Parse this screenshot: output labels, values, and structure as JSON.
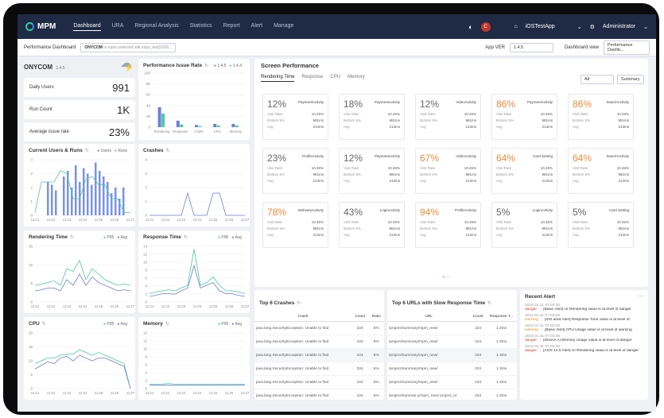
{
  "nav": {
    "brand": "MPM",
    "items": [
      "Dashboard",
      "URA",
      "Regional Analysis",
      "Statistics",
      "Report",
      "Alert",
      "Manage"
    ],
    "app": "iOSTestApp",
    "user": "Administrator",
    "avatar": "C"
  },
  "bar2": {
    "title": "Performance Dashboard",
    "tag": "ONYCOM",
    "tag_sub": "io.mpm.oneknnd.sdk.mtps_test(2200...",
    "appver_label": "App VER",
    "appver": "1.4.5",
    "dashview_label": "Dashboard view",
    "dashview": "Performance Dashb..."
  },
  "app": {
    "name": "ONYCOM",
    "ver": "1.4.5"
  },
  "kpis": [
    {
      "label": "Daily Users",
      "value": "991"
    },
    {
      "label": "Run Count",
      "value": "1K"
    },
    {
      "label": "Average issue rate",
      "value": "23%"
    }
  ],
  "perf_issue": {
    "title": "Performance Issue Rate",
    "legend": [
      "1.4.5",
      "1.4.4"
    ],
    "yticks": [
      "100",
      "80",
      "60",
      "40",
      "20",
      "0"
    ],
    "cats": [
      "Rendering",
      "Response",
      "Crash",
      "CPU",
      "Memory"
    ],
    "series": [
      [
        37,
        12,
        4,
        6,
        6
      ],
      [
        25,
        5,
        2,
        3,
        3
      ]
    ]
  },
  "cur_users": {
    "title": "Current Users & Runs",
    "legend": [
      "Users",
      "Runs"
    ],
    "yticks": [
      "4",
      "3",
      "2",
      "1",
      "0"
    ],
    "xticks": [
      "11:21",
      "11:22",
      "11:23",
      "11:24",
      "11:25",
      "11:26",
      "11:27"
    ]
  },
  "crashes": {
    "title": "Crashes",
    "yticks": [
      "4",
      "3",
      "2",
      "1",
      "0"
    ],
    "xticks": [
      "11:21",
      "11:22",
      "11:23",
      "11:24",
      "11:25",
      "11:26",
      "11:27"
    ]
  },
  "rendering": {
    "title": "Rendering Time",
    "legend": [
      "P95",
      "Avg"
    ],
    "yticks": [
      "15",
      "10",
      "5",
      "0"
    ],
    "xticks": [
      "11:21",
      "11:22",
      "11:23",
      "11:24",
      "11:25",
      "11:26",
      "11:27"
    ]
  },
  "response": {
    "title": "Response Time",
    "legend": [
      "P95",
      "Avg"
    ],
    "yticks": [
      "14",
      "12",
      "10",
      "8",
      "6",
      "4",
      "2",
      "0"
    ],
    "xticks": [
      "11:21",
      "11:22",
      "11:23",
      "11:24",
      "11:25",
      "11:26",
      "11:27"
    ]
  },
  "cpu": {
    "title": "CPU",
    "legend": [
      "P95",
      "Avg"
    ],
    "yticks": [
      "20",
      "15",
      "10",
      "5",
      "0"
    ],
    "xticks": [
      "11:21",
      "11:22",
      "11:23",
      "11:24",
      "11:25",
      "11:26",
      "11:27"
    ]
  },
  "memory": {
    "title": "Memory",
    "legend": [
      "P95",
      "Avg"
    ],
    "yticks": [
      "14",
      "12",
      "10",
      "8",
      "6",
      "4",
      "2",
      "0"
    ],
    "xticks": [
      "11:21",
      "11:22",
      "11:23",
      "11:24",
      "11:25",
      "11:26",
      "11:27"
    ]
  },
  "screen": {
    "title": "Screen Performance",
    "tabs": [
      "Rendering Time",
      "Response",
      "CPU",
      "Memory"
    ],
    "filter": "All",
    "summary": "Summary",
    "labels": {
      "visit": "Visit Rate",
      "bottom": "Bottom 5%",
      "avg": "Avg"
    },
    "cells": [
      {
        "p": "12%",
        "n": "PaymentActivity",
        "o": false
      },
      {
        "p": "18%",
        "n": "PaymentActivity",
        "o": false
      },
      {
        "p": "12%",
        "n": "VideoActivity",
        "o": false
      },
      {
        "p": "86%",
        "n": "PaymentActivity",
        "o": true
      },
      {
        "p": "86%",
        "n": "SearchActivity",
        "o": true
      },
      {
        "p": "23%",
        "n": "ProfileActivity",
        "o": false
      },
      {
        "p": "12%",
        "n": "PaymentActivity",
        "o": false
      },
      {
        "p": "67%",
        "n": "VideoActivity",
        "o": true
      },
      {
        "p": "64%",
        "n": "Card Setting",
        "o": true
      },
      {
        "p": "64%",
        "n": "SearchActivity",
        "o": true
      },
      {
        "p": "78%",
        "n": "WebviewActivity",
        "o": true
      },
      {
        "p": "43%",
        "n": "LoginActivity",
        "o": false
      },
      {
        "p": "94%",
        "n": "ProfileActivity",
        "o": true
      },
      {
        "p": "5%",
        "n": "LoginActivity",
        "o": false
      },
      {
        "p": "5%",
        "n": "Card Setting",
        "o": false
      }
    ],
    "vals": {
      "visit": "10.45%",
      "bottom": "981ms",
      "avg": "213ms"
    }
  },
  "crash6": {
    "title": "Top 6 Crashes",
    "cols": [
      "Crash",
      "Count",
      "Ratio"
    ],
    "rows": [
      [
        "java.lang.SecurityException: Unable to find",
        "224",
        "5%"
      ],
      [
        "java.lang.SecurityException: Unable to find",
        "224",
        "5%"
      ],
      [
        "java.lang.SecurityException: Unable to find",
        "224",
        "5%"
      ],
      [
        "java.lang.SecurityException: Unable to find",
        "224",
        "5%"
      ],
      [
        "java.lang.SecurityException: Unable to find",
        "224",
        "5%"
      ],
      [
        "java.lang.SecurityException: Unable to find",
        "224",
        "5%"
      ]
    ]
  },
  "url6": {
    "title": "Top 6 URLs with Slow Response Time",
    "cols": [
      "URL",
      "Count",
      "Response T..."
    ],
    "rows": [
      [
        "/project/summary/mpm_new/",
        "224",
        "1.3ms"
      ],
      [
        "/project/summary/mpm_new/",
        "224",
        "1.3ms"
      ],
      [
        "/project/summary/mpm_new/",
        "224",
        "1.3ms"
      ],
      [
        "/project/summary/mpm_new/",
        "224",
        "1.3ms"
      ],
      [
        "/project/summary/mpm_new/",
        "224",
        "1.3ms"
      ],
      [
        "/project/summar y/mpm_new/ project_id",
        "224",
        "1.3ms"
      ]
    ]
  },
  "alerts": {
    "title": "Recent Alert",
    "items": [
      {
        "time": "2019.01.31 07:03:36",
        "lvl": "danger",
        "msg": "[Basic Alert] UI Rendering value is at level of danger"
      },
      {
        "time": "2019.01.31 07:03:36",
        "lvl": "warning",
        "msg": "[iOS area Alert] Response Time value is at level of"
      },
      {
        "time": "2019.01.31 07:03:36",
        "lvl": "warning",
        "msg": "[Basic Alert] CPU Usage value is at level of warning"
      },
      {
        "time": "2019.01.31 07:03:36",
        "lvl": "danger",
        "msg": "[Device A] Memory Usage value is at level of danger"
      },
      {
        "time": "2019.01.31 07:03:36",
        "lvl": "danger",
        "msg": "[AOS 14.0 Alert] UI Rendering value is at level of danger"
      }
    ]
  }
}
